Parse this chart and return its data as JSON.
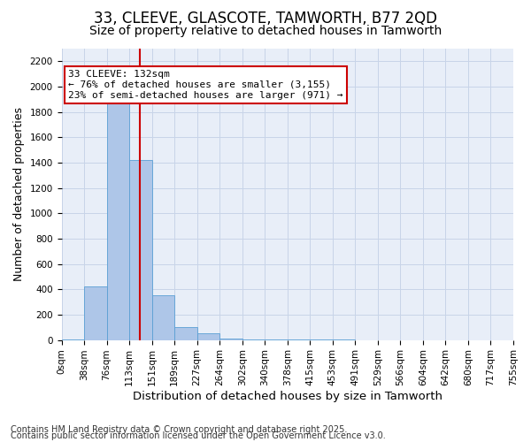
{
  "title": "33, CLEEVE, GLASCOTE, TAMWORTH, B77 2QD",
  "subtitle": "Size of property relative to detached houses in Tamworth",
  "xlabel": "Distribution of detached houses by size in Tamworth",
  "ylabel": "Number of detached properties",
  "bin_labels": [
    "0sqm",
    "38sqm",
    "76sqm",
    "113sqm",
    "151sqm",
    "189sqm",
    "227sqm",
    "264sqm",
    "302sqm",
    "340sqm",
    "378sqm",
    "415sqm",
    "453sqm",
    "491sqm",
    "529sqm",
    "566sqm",
    "604sqm",
    "642sqm",
    "680sqm",
    "717sqm",
    "755sqm"
  ],
  "bar_heights": [
    5,
    420,
    2050,
    1420,
    350,
    100,
    50,
    10,
    5,
    3,
    2,
    1,
    1,
    0,
    0,
    0,
    0,
    0,
    0,
    0
  ],
  "bar_color": "#aec6e8",
  "bar_edge_color": "#5a9fd4",
  "grid_color": "#c8d4e8",
  "background_color": "#e8eef8",
  "vline_x": 3.45,
  "vline_color": "#cc0000",
  "annotation_text": "33 CLEEVE: 132sqm\n← 76% of detached houses are smaller (3,155)\n23% of semi-detached houses are larger (971) →",
  "annotation_box_color": "#cc0000",
  "ylim": [
    0,
    2300
  ],
  "yticks": [
    0,
    200,
    400,
    600,
    800,
    1000,
    1200,
    1400,
    1600,
    1800,
    2000,
    2200
  ],
  "footer_line1": "Contains HM Land Registry data © Crown copyright and database right 2025.",
  "footer_line2": "Contains public sector information licensed under the Open Government Licence v3.0.",
  "title_fontsize": 12,
  "subtitle_fontsize": 10,
  "axis_label_fontsize": 9,
  "tick_fontsize": 7.5,
  "annotation_fontsize": 8,
  "footer_fontsize": 7
}
